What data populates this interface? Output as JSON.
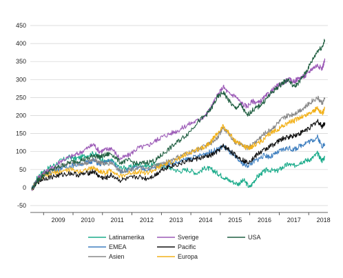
{
  "chart_data": {
    "type": "line",
    "title": "",
    "xlabel": "",
    "ylabel": "",
    "ylim": [
      -50,
      450
    ],
    "yticks": [
      -50,
      0,
      50,
      100,
      150,
      200,
      250,
      300,
      350,
      400,
      450
    ],
    "xlim": [
      2008.55,
      2018.65
    ],
    "xticks": [
      "2009",
      "2010",
      "2011",
      "2012",
      "2013",
      "2014",
      "2015",
      "2016",
      "2017",
      "2018"
    ],
    "grid": "horizontal",
    "legend_position": "bottom",
    "series": [
      {
        "name": "Latinamerika",
        "color": "#1aab8a",
        "points": [
          [
            2008.6,
            -5
          ],
          [
            2008.8,
            30
          ],
          [
            2009.0,
            45
          ],
          [
            2009.3,
            60
          ],
          [
            2009.6,
            75
          ],
          [
            2009.9,
            85
          ],
          [
            2010.1,
            80
          ],
          [
            2010.4,
            88
          ],
          [
            2010.7,
            95
          ],
          [
            2010.9,
            85
          ],
          [
            2011.1,
            70
          ],
          [
            2011.3,
            75
          ],
          [
            2011.6,
            55
          ],
          [
            2011.9,
            55
          ],
          [
            2012.2,
            65
          ],
          [
            2012.5,
            60
          ],
          [
            2012.8,
            65
          ],
          [
            2013.0,
            60
          ],
          [
            2013.3,
            55
          ],
          [
            2013.6,
            45
          ],
          [
            2013.9,
            50
          ],
          [
            2014.2,
            40
          ],
          [
            2014.5,
            55
          ],
          [
            2014.7,
            50
          ],
          [
            2014.9,
            40
          ],
          [
            2015.1,
            30
          ],
          [
            2015.3,
            20
          ],
          [
            2015.6,
            10
          ],
          [
            2015.8,
            20
          ],
          [
            2016.0,
            0
          ],
          [
            2016.2,
            25
          ],
          [
            2016.4,
            40
          ],
          [
            2016.6,
            50
          ],
          [
            2016.9,
            45
          ],
          [
            2017.1,
            55
          ],
          [
            2017.3,
            65
          ],
          [
            2017.5,
            60
          ],
          [
            2017.7,
            70
          ],
          [
            2017.9,
            75
          ],
          [
            2018.1,
            80
          ],
          [
            2018.3,
            95
          ],
          [
            2018.45,
            75
          ],
          [
            2018.55,
            85
          ]
        ]
      },
      {
        "name": "Sverige",
        "color": "#9b59b6",
        "points": [
          [
            2008.6,
            -5
          ],
          [
            2008.8,
            25
          ],
          [
            2009.0,
            40
          ],
          [
            2009.3,
            55
          ],
          [
            2009.6,
            75
          ],
          [
            2009.9,
            85
          ],
          [
            2010.2,
            95
          ],
          [
            2010.5,
            110
          ],
          [
            2010.7,
            120
          ],
          [
            2010.9,
            100
          ],
          [
            2011.1,
            105
          ],
          [
            2011.3,
            110
          ],
          [
            2011.6,
            80
          ],
          [
            2011.9,
            90
          ],
          [
            2012.2,
            110
          ],
          [
            2012.5,
            115
          ],
          [
            2012.8,
            130
          ],
          [
            2013.0,
            140
          ],
          [
            2013.3,
            150
          ],
          [
            2013.6,
            160
          ],
          [
            2013.9,
            175
          ],
          [
            2014.2,
            185
          ],
          [
            2014.5,
            200
          ],
          [
            2014.7,
            225
          ],
          [
            2014.9,
            255
          ],
          [
            2015.1,
            280
          ],
          [
            2015.3,
            260
          ],
          [
            2015.5,
            255
          ],
          [
            2015.7,
            235
          ],
          [
            2015.9,
            225
          ],
          [
            2016.1,
            240
          ],
          [
            2016.3,
            235
          ],
          [
            2016.5,
            250
          ],
          [
            2016.7,
            265
          ],
          [
            2016.9,
            280
          ],
          [
            2017.1,
            290
          ],
          [
            2017.3,
            300
          ],
          [
            2017.5,
            295
          ],
          [
            2017.7,
            305
          ],
          [
            2017.9,
            310
          ],
          [
            2018.1,
            330
          ],
          [
            2018.3,
            340
          ],
          [
            2018.45,
            330
          ],
          [
            2018.55,
            355
          ]
        ]
      },
      {
        "name": "USA",
        "color": "#1f5e40",
        "points": [
          [
            2008.6,
            -5
          ],
          [
            2008.8,
            20
          ],
          [
            2009.0,
            35
          ],
          [
            2009.3,
            50
          ],
          [
            2009.6,
            60
          ],
          [
            2009.9,
            70
          ],
          [
            2010.2,
            75
          ],
          [
            2010.5,
            80
          ],
          [
            2010.7,
            90
          ],
          [
            2010.9,
            85
          ],
          [
            2011.1,
            90
          ],
          [
            2011.3,
            95
          ],
          [
            2011.6,
            70
          ],
          [
            2011.9,
            75
          ],
          [
            2012.2,
            65
          ],
          [
            2012.5,
            70
          ],
          [
            2012.8,
            75
          ],
          [
            2013.0,
            90
          ],
          [
            2013.3,
            110
          ],
          [
            2013.6,
            130
          ],
          [
            2013.9,
            150
          ],
          [
            2014.2,
            180
          ],
          [
            2014.5,
            200
          ],
          [
            2014.7,
            220
          ],
          [
            2014.9,
            250
          ],
          [
            2015.1,
            265
          ],
          [
            2015.3,
            240
          ],
          [
            2015.5,
            220
          ],
          [
            2015.7,
            230
          ],
          [
            2015.9,
            200
          ],
          [
            2016.1,
            215
          ],
          [
            2016.3,
            225
          ],
          [
            2016.5,
            240
          ],
          [
            2016.7,
            260
          ],
          [
            2016.9,
            275
          ],
          [
            2017.1,
            290
          ],
          [
            2017.3,
            300
          ],
          [
            2017.5,
            280
          ],
          [
            2017.7,
            295
          ],
          [
            2017.9,
            320
          ],
          [
            2018.1,
            350
          ],
          [
            2018.3,
            380
          ],
          [
            2018.45,
            390
          ],
          [
            2018.55,
            410
          ]
        ]
      },
      {
        "name": "EMEA",
        "color": "#3f7fbf",
        "points": [
          [
            2008.6,
            -5
          ],
          [
            2008.8,
            20
          ],
          [
            2009.0,
            35
          ],
          [
            2009.3,
            45
          ],
          [
            2009.6,
            55
          ],
          [
            2009.9,
            60
          ],
          [
            2010.2,
            65
          ],
          [
            2010.5,
            70
          ],
          [
            2010.7,
            75
          ],
          [
            2010.9,
            65
          ],
          [
            2011.1,
            70
          ],
          [
            2011.3,
            75
          ],
          [
            2011.6,
            45
          ],
          [
            2011.9,
            50
          ],
          [
            2012.2,
            55
          ],
          [
            2012.5,
            50
          ],
          [
            2012.8,
            55
          ],
          [
            2013.0,
            60
          ],
          [
            2013.3,
            65
          ],
          [
            2013.6,
            70
          ],
          [
            2013.9,
            80
          ],
          [
            2014.2,
            85
          ],
          [
            2014.5,
            95
          ],
          [
            2014.7,
            100
          ],
          [
            2014.9,
            105
          ],
          [
            2015.1,
            115
          ],
          [
            2015.3,
            100
          ],
          [
            2015.5,
            85
          ],
          [
            2015.7,
            70
          ],
          [
            2015.9,
            60
          ],
          [
            2016.1,
            70
          ],
          [
            2016.3,
            80
          ],
          [
            2016.5,
            90
          ],
          [
            2016.7,
            85
          ],
          [
            2016.9,
            95
          ],
          [
            2017.1,
            105
          ],
          [
            2017.3,
            110
          ],
          [
            2017.5,
            105
          ],
          [
            2017.7,
            115
          ],
          [
            2017.9,
            125
          ],
          [
            2018.1,
            130
          ],
          [
            2018.3,
            140
          ],
          [
            2018.45,
            115
          ],
          [
            2018.55,
            120
          ]
        ]
      },
      {
        "name": "Pacific",
        "color": "#111111",
        "points": [
          [
            2008.6,
            -5
          ],
          [
            2008.8,
            15
          ],
          [
            2009.0,
            25
          ],
          [
            2009.3,
            30
          ],
          [
            2009.6,
            35
          ],
          [
            2009.9,
            40
          ],
          [
            2010.2,
            35
          ],
          [
            2010.5,
            40
          ],
          [
            2010.7,
            45
          ],
          [
            2010.9,
            30
          ],
          [
            2011.1,
            25
          ],
          [
            2011.3,
            35
          ],
          [
            2011.6,
            20
          ],
          [
            2011.9,
            25
          ],
          [
            2012.2,
            30
          ],
          [
            2012.5,
            25
          ],
          [
            2012.8,
            35
          ],
          [
            2013.0,
            50
          ],
          [
            2013.3,
            60
          ],
          [
            2013.6,
            65
          ],
          [
            2013.9,
            75
          ],
          [
            2014.2,
            80
          ],
          [
            2014.5,
            85
          ],
          [
            2014.7,
            90
          ],
          [
            2014.9,
            100
          ],
          [
            2015.1,
            115
          ],
          [
            2015.3,
            105
          ],
          [
            2015.5,
            90
          ],
          [
            2015.7,
            80
          ],
          [
            2015.9,
            70
          ],
          [
            2016.1,
            80
          ],
          [
            2016.3,
            95
          ],
          [
            2016.5,
            105
          ],
          [
            2016.7,
            115
          ],
          [
            2016.9,
            125
          ],
          [
            2017.1,
            135
          ],
          [
            2017.3,
            140
          ],
          [
            2017.5,
            145
          ],
          [
            2017.7,
            150
          ],
          [
            2017.9,
            160
          ],
          [
            2018.1,
            170
          ],
          [
            2018.3,
            185
          ],
          [
            2018.45,
            170
          ],
          [
            2018.55,
            180
          ]
        ]
      },
      {
        "name": "Asien",
        "color": "#888888",
        "points": [
          [
            2008.6,
            -5
          ],
          [
            2008.8,
            25
          ],
          [
            2009.0,
            40
          ],
          [
            2009.3,
            50
          ],
          [
            2009.6,
            60
          ],
          [
            2009.9,
            70
          ],
          [
            2010.2,
            65
          ],
          [
            2010.5,
            70
          ],
          [
            2010.7,
            80
          ],
          [
            2010.9,
            70
          ],
          [
            2011.1,
            65
          ],
          [
            2011.3,
            70
          ],
          [
            2011.6,
            45
          ],
          [
            2011.9,
            50
          ],
          [
            2012.2,
            55
          ],
          [
            2012.5,
            50
          ],
          [
            2012.8,
            60
          ],
          [
            2013.0,
            65
          ],
          [
            2013.3,
            75
          ],
          [
            2013.6,
            85
          ],
          [
            2013.9,
            95
          ],
          [
            2014.2,
            105
          ],
          [
            2014.5,
            115
          ],
          [
            2014.7,
            125
          ],
          [
            2014.9,
            140
          ],
          [
            2015.1,
            165
          ],
          [
            2015.3,
            150
          ],
          [
            2015.5,
            125
          ],
          [
            2015.7,
            120
          ],
          [
            2015.9,
            110
          ],
          [
            2016.1,
            120
          ],
          [
            2016.3,
            135
          ],
          [
            2016.5,
            150
          ],
          [
            2016.7,
            160
          ],
          [
            2016.9,
            175
          ],
          [
            2017.1,
            190
          ],
          [
            2017.3,
            200
          ],
          [
            2017.5,
            205
          ],
          [
            2017.7,
            215
          ],
          [
            2017.9,
            225
          ],
          [
            2018.1,
            240
          ],
          [
            2018.3,
            250
          ],
          [
            2018.45,
            235
          ],
          [
            2018.55,
            245
          ]
        ]
      },
      {
        "name": "Europa",
        "color": "#f2b11a",
        "points": [
          [
            2008.6,
            -5
          ],
          [
            2008.8,
            20
          ],
          [
            2009.0,
            30
          ],
          [
            2009.3,
            40
          ],
          [
            2009.6,
            45
          ],
          [
            2009.9,
            50
          ],
          [
            2010.2,
            45
          ],
          [
            2010.5,
            50
          ],
          [
            2010.7,
            55
          ],
          [
            2010.9,
            45
          ],
          [
            2011.1,
            40
          ],
          [
            2011.3,
            50
          ],
          [
            2011.6,
            30
          ],
          [
            2011.9,
            40
          ],
          [
            2012.2,
            45
          ],
          [
            2012.5,
            40
          ],
          [
            2012.8,
            50
          ],
          [
            2013.0,
            60
          ],
          [
            2013.3,
            70
          ],
          [
            2013.6,
            80
          ],
          [
            2013.9,
            95
          ],
          [
            2014.2,
            105
          ],
          [
            2014.5,
            115
          ],
          [
            2014.7,
            130
          ],
          [
            2014.9,
            150
          ],
          [
            2015.1,
            170
          ],
          [
            2015.3,
            150
          ],
          [
            2015.5,
            130
          ],
          [
            2015.7,
            120
          ],
          [
            2015.9,
            110
          ],
          [
            2016.1,
            115
          ],
          [
            2016.3,
            125
          ],
          [
            2016.5,
            135
          ],
          [
            2016.7,
            150
          ],
          [
            2016.9,
            160
          ],
          [
            2017.1,
            170
          ],
          [
            2017.3,
            180
          ],
          [
            2017.5,
            185
          ],
          [
            2017.7,
            195
          ],
          [
            2017.9,
            200
          ],
          [
            2018.1,
            210
          ],
          [
            2018.3,
            220
          ],
          [
            2018.45,
            205
          ],
          [
            2018.55,
            220
          ]
        ]
      }
    ]
  }
}
